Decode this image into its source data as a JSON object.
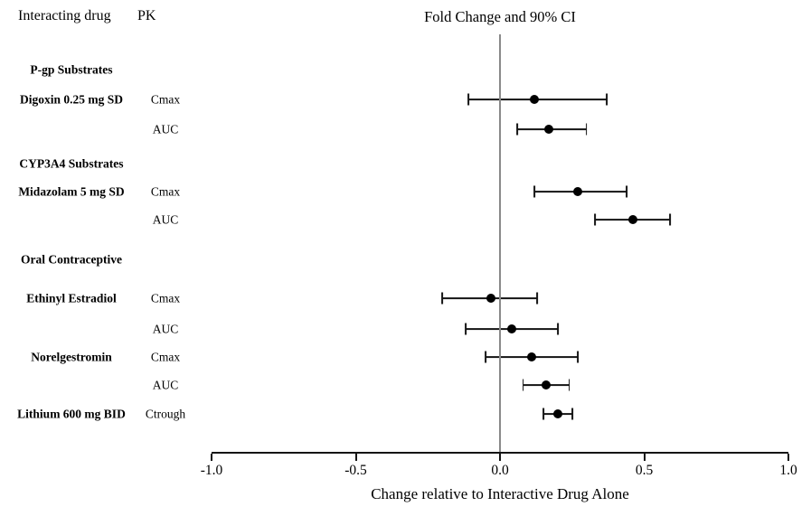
{
  "header": {
    "col1": "Interacting drug",
    "col2": "PK"
  },
  "axis": {
    "ticks": [
      -1.0,
      -0.5,
      0.0,
      0.5,
      1.0
    ],
    "tick_labels": [
      "-1.0",
      "-0.5",
      "0.0",
      "0.5",
      "1.0"
    ]
  },
  "chart_data": {
    "type": "scatter",
    "subtype": "forest-plot",
    "title": "Fold Change and 90% CI",
    "xlabel": "Change relative to Interactive Drug Alone",
    "xlim": [
      -1.0,
      1.0
    ],
    "x_ticks": [
      -1.0,
      -0.5,
      0.0,
      0.5,
      1.0
    ],
    "reference_line_x": 0.0,
    "grid": false,
    "rows": [
      {
        "kind": "group",
        "label": "P-gp Substrates"
      },
      {
        "kind": "data",
        "drug": "Digoxin 0.25 mg SD",
        "pk": "Cmax",
        "estimate": 0.12,
        "ci_low": -0.11,
        "ci_high": 0.37
      },
      {
        "kind": "data",
        "drug": "",
        "pk": "AUC",
        "estimate": 0.17,
        "ci_low": 0.06,
        "ci_high": 0.3
      },
      {
        "kind": "group",
        "label": "CYP3A4 Substrates"
      },
      {
        "kind": "data",
        "drug": "Midazolam 5 mg SD",
        "pk": "Cmax",
        "estimate": 0.27,
        "ci_low": 0.12,
        "ci_high": 0.44
      },
      {
        "kind": "data",
        "drug": "",
        "pk": "AUC",
        "estimate": 0.46,
        "ci_low": 0.33,
        "ci_high": 0.59
      },
      {
        "kind": "group",
        "label": "Oral Contraceptive"
      },
      {
        "kind": "data",
        "drug": "Ethinyl Estradiol",
        "pk": "Cmax",
        "estimate": -0.03,
        "ci_low": -0.2,
        "ci_high": 0.13
      },
      {
        "kind": "data",
        "drug": "",
        "pk": "AUC",
        "estimate": 0.04,
        "ci_low": -0.12,
        "ci_high": 0.2
      },
      {
        "kind": "data",
        "drug": "Norelgestromin",
        "pk": "Cmax",
        "estimate": 0.11,
        "ci_low": -0.05,
        "ci_high": 0.27
      },
      {
        "kind": "data",
        "drug": "",
        "pk": "AUC",
        "estimate": 0.16,
        "ci_low": 0.08,
        "ci_high": 0.24
      },
      {
        "kind": "data",
        "drug": "Lithium 600 mg BID",
        "pk": "Ctrough",
        "estimate": 0.2,
        "ci_low": 0.15,
        "ci_high": 0.25
      }
    ]
  },
  "colors": {
    "marker": "#000000",
    "error_bar": "#151515",
    "reference_line": "#8a8a8a",
    "axis": "#151515",
    "text": "#000000",
    "background": "#ffffff"
  }
}
